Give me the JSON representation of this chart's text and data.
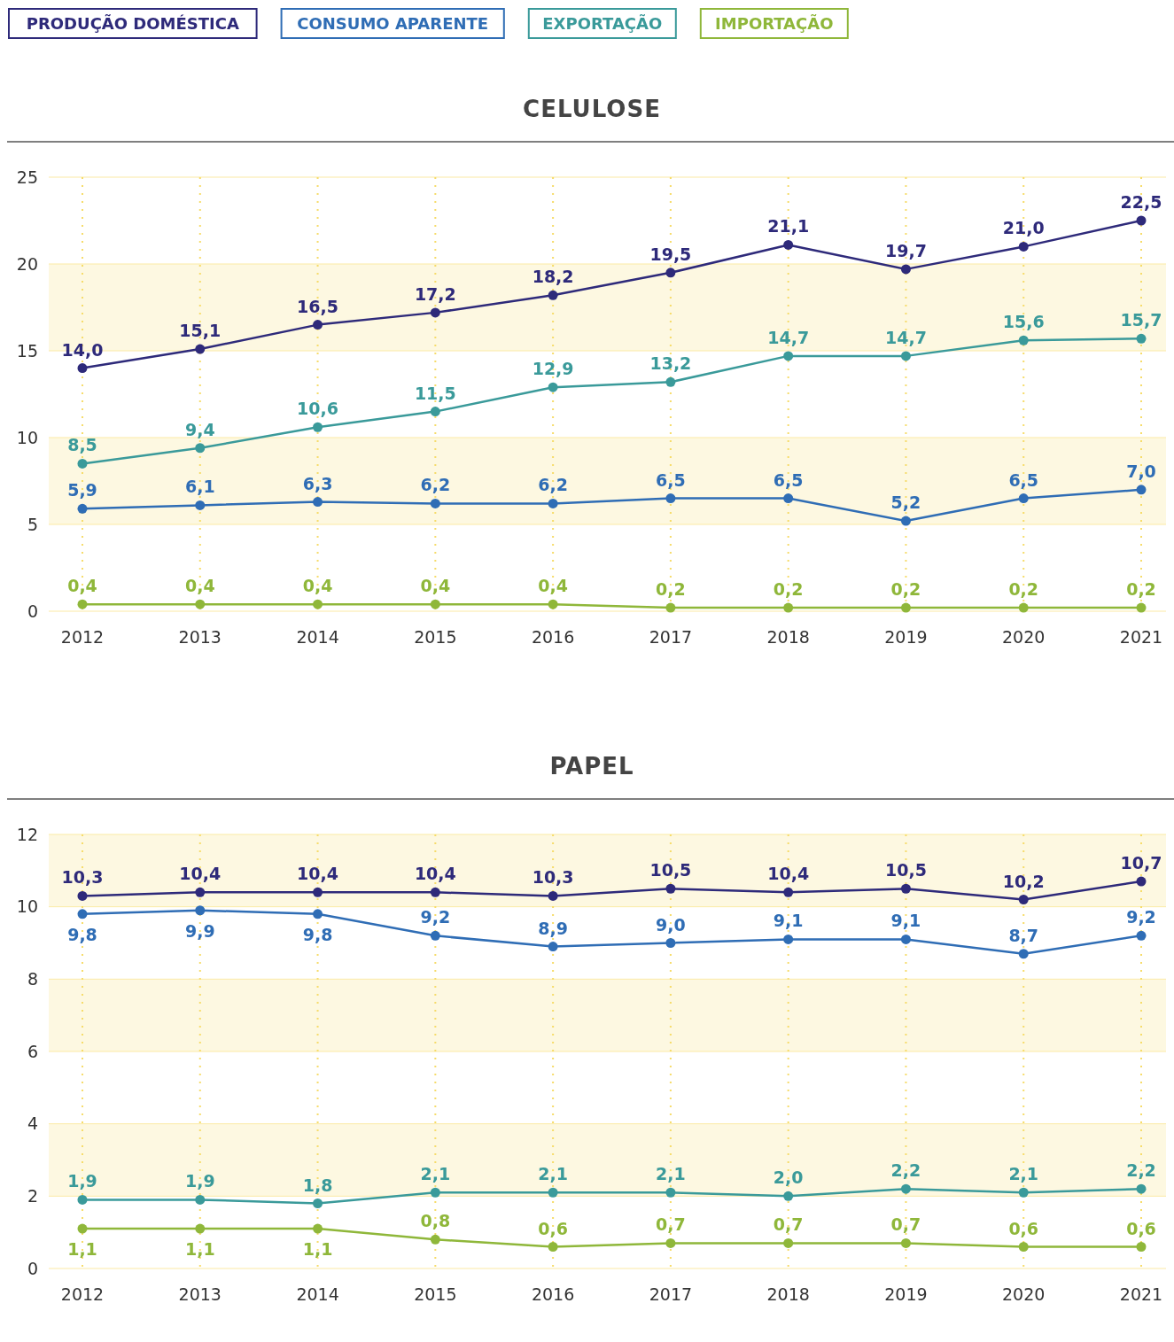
{
  "chart_data": [
    {
      "type": "line",
      "title": "CELULOSE",
      "categories": [
        "2012",
        "2013",
        "2014",
        "2015",
        "2016",
        "2017",
        "2018",
        "2019",
        "2020",
        "2021"
      ],
      "series": [
        {
          "name": "PRODUÇÃO DOMÉSTICA",
          "color": "#2e2a7a",
          "values": [
            14.0,
            15.1,
            16.5,
            17.2,
            18.2,
            19.5,
            21.1,
            19.7,
            21.0,
            22.5
          ],
          "value_labels": [
            "14,0",
            "15,1",
            "16,5",
            "17,2",
            "18,2",
            "19,5",
            "21,1",
            "19,7",
            "21,0",
            "22,5"
          ]
        },
        {
          "name": "CONSUMO APARENTE",
          "color": "#2f6db5",
          "values": [
            5.9,
            6.1,
            6.3,
            6.2,
            6.2,
            6.5,
            6.5,
            5.2,
            6.5,
            7.0
          ],
          "value_labels": [
            "5,9",
            "6,1",
            "6,3",
            "6,2",
            "6,2",
            "6,5",
            "6,5",
            "5,2",
            "6,5",
            "7,0"
          ]
        },
        {
          "name": "EXPORTAÇÃO",
          "color": "#3a9a9a",
          "values": [
            8.5,
            9.4,
            10.6,
            11.5,
            12.9,
            13.2,
            14.7,
            14.7,
            15.6,
            15.7
          ],
          "value_labels": [
            "8,5",
            "9,4",
            "10,6",
            "11,5",
            "12,9",
            "13,2",
            "14,7",
            "14,7",
            "15,6",
            "15,7"
          ]
        },
        {
          "name": "IMPORTAÇÃO",
          "color": "#8fb73a",
          "values": [
            0.4,
            0.4,
            0.4,
            0.4,
            0.4,
            0.2,
            0.2,
            0.2,
            0.2,
            0.2
          ],
          "value_labels": [
            "0,4",
            "0,4",
            "0,4",
            "0,4",
            "0,4",
            "0,2",
            "0,2",
            "0,2",
            "0,2",
            "0,2"
          ]
        }
      ],
      "ylim": [
        0,
        25
      ],
      "yticks": [
        0,
        5,
        10,
        15,
        20,
        25
      ],
      "grid": true,
      "legend": "top",
      "marker": "circle",
      "bands": [
        {
          "axis": "y",
          "from": 5,
          "to": 10,
          "color": "#fdf8e1"
        },
        {
          "axis": "y",
          "from": 15,
          "to": 20,
          "color": "#fdf8e1"
        }
      ]
    },
    {
      "type": "line",
      "title": "PAPEL",
      "categories": [
        "2012",
        "2013",
        "2014",
        "2015",
        "2016",
        "2017",
        "2018",
        "2019",
        "2020",
        "2021"
      ],
      "series": [
        {
          "color": "#2e2a7a",
          "values": [
            10.3,
            10.4,
            10.4,
            10.4,
            10.3,
            10.5,
            10.4,
            10.5,
            10.2,
            10.7
          ],
          "value_labels": [
            "10,3",
            "10,4",
            "10,4",
            "10,4",
            "10,3",
            "10,5",
            "10,4",
            "10,5",
            "10,2",
            "10,7"
          ]
        },
        {
          "color": "#2f6db5",
          "values": [
            9.8,
            9.9,
            9.8,
            9.2,
            8.9,
            9.0,
            9.1,
            9.1,
            8.7,
            9.2
          ],
          "value_labels": [
            "9,8",
            "9,9",
            "9,8",
            "9,2",
            "8,9",
            "9,0",
            "9,1",
            "9,1",
            "8,7",
            "9,2"
          ]
        },
        {
          "color": "#3a9a9a",
          "values": [
            1.9,
            1.9,
            1.8,
            2.1,
            2.1,
            2.1,
            2.0,
            2.2,
            2.1,
            2.2
          ],
          "value_labels": [
            "1,9",
            "1,9",
            "1,8",
            "2,1",
            "2,1",
            "2,1",
            "2,0",
            "2,2",
            "2,1",
            "2,2"
          ]
        },
        {
          "color": "#8fb73a",
          "values": [
            1.1,
            1.1,
            1.1,
            0.8,
            0.6,
            0.7,
            0.7,
            0.7,
            0.6,
            0.6
          ],
          "value_labels": [
            "1,1",
            "1,1",
            "1,1",
            "0,8",
            "0,6",
            "0,7",
            "0,7",
            "0,7",
            "0,6",
            "0,6"
          ]
        }
      ],
      "ylim": [
        0,
        12
      ],
      "yticks": [
        0,
        2,
        4,
        6,
        8,
        10,
        12
      ],
      "grid": true,
      "marker": "circle",
      "bands": [
        {
          "axis": "y",
          "from": 2,
          "to": 4,
          "color": "#fdf8e1"
        },
        {
          "axis": "y",
          "from": 6,
          "to": 8,
          "color": "#fdf8e1"
        },
        {
          "axis": "y",
          "from": 10,
          "to": 12,
          "color": "#fdf8e1"
        }
      ]
    }
  ]
}
